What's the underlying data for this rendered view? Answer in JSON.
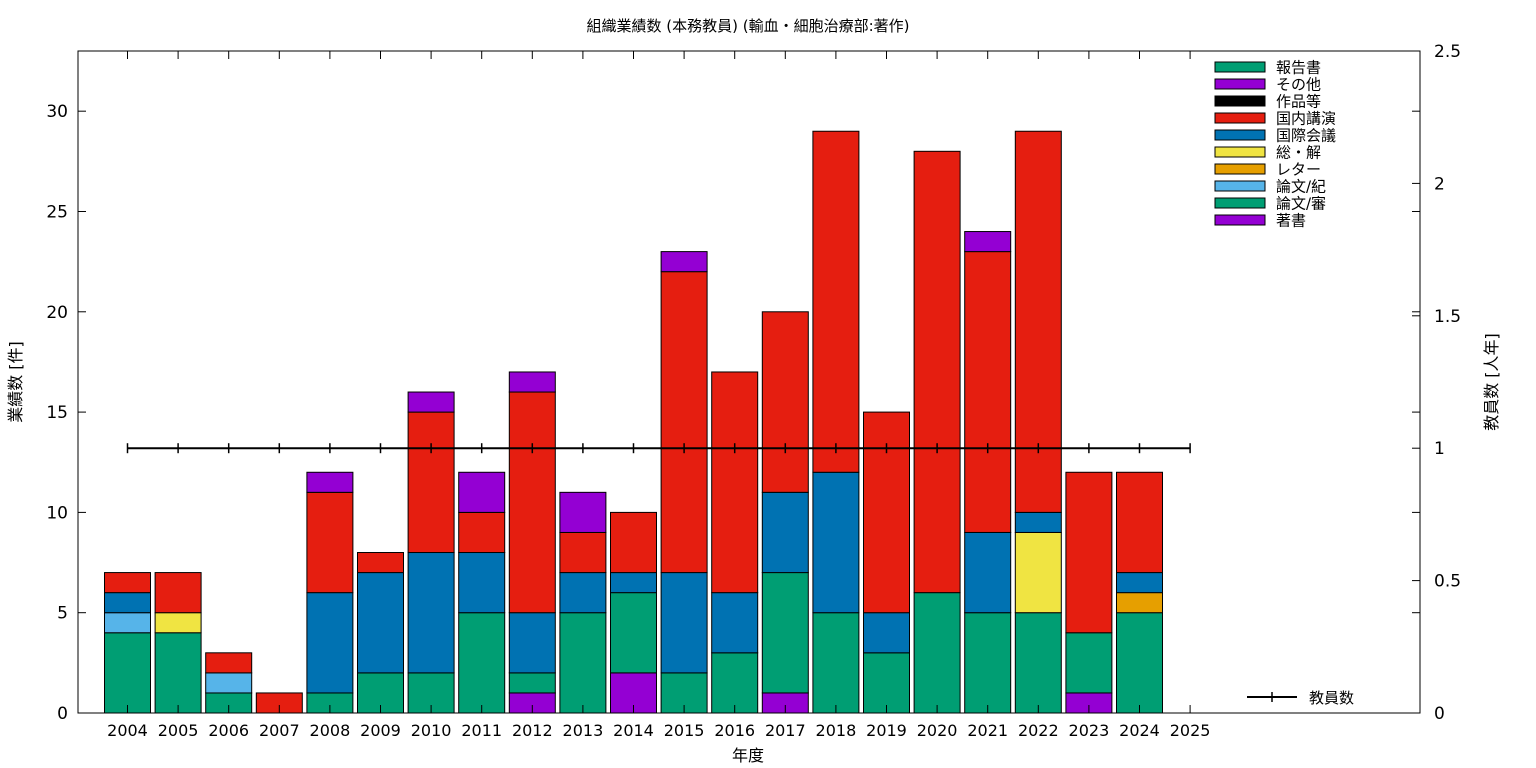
{
  "chart_data": {
    "type": "bar",
    "stacked": true,
    "title": "組織業績数 (本務教員) (輸血・細胞治療部:著作)",
    "xlabel": "年度",
    "ylabel": "業績数 [件]",
    "y2label": "教員数 [人年]",
    "ylim": [
      0,
      33
    ],
    "y2lim": [
      0,
      2.5
    ],
    "yticks": [
      0,
      5,
      10,
      15,
      20,
      25,
      30
    ],
    "y2ticks": [
      "0",
      "0.5",
      "1",
      "1.5",
      "2",
      "2.5"
    ],
    "y2tick_values": [
      0,
      0.5,
      1,
      1.5,
      2,
      2.5
    ],
    "categories": [
      "2004",
      "2005",
      "2006",
      "2007",
      "2008",
      "2009",
      "2010",
      "2011",
      "2012",
      "2013",
      "2014",
      "2015",
      "2016",
      "2017",
      "2018",
      "2019",
      "2020",
      "2021",
      "2022",
      "2023",
      "2024",
      "2025"
    ],
    "series": [
      {
        "name": "著書",
        "color": "#9400d3",
        "values": [
          0,
          0,
          0,
          0,
          0,
          0,
          0,
          0,
          1,
          0,
          2,
          0,
          0,
          1,
          0,
          0,
          0,
          0,
          0,
          1,
          0,
          0
        ]
      },
      {
        "name": "論文/審",
        "color": "#009e73",
        "values": [
          4,
          4,
          1,
          0,
          1,
          2,
          2,
          5,
          1,
          5,
          4,
          2,
          3,
          6,
          5,
          3,
          6,
          5,
          5,
          3,
          5,
          0
        ]
      },
      {
        "name": "論文/紀",
        "color": "#56b4e9",
        "values": [
          1,
          0,
          1,
          0,
          0,
          0,
          0,
          0,
          0,
          0,
          0,
          0,
          0,
          0,
          0,
          0,
          0,
          0,
          0,
          0,
          0,
          0
        ]
      },
      {
        "name": "レター",
        "color": "#e69f00",
        "values": [
          0,
          0,
          0,
          0,
          0,
          0,
          0,
          0,
          0,
          0,
          0,
          0,
          0,
          0,
          0,
          0,
          0,
          0,
          0,
          0,
          1,
          0
        ]
      },
      {
        "name": "総・解",
        "color": "#f0e442",
        "values": [
          0,
          1,
          0,
          0,
          0,
          0,
          0,
          0,
          0,
          0,
          0,
          0,
          0,
          0,
          0,
          0,
          0,
          0,
          4,
          0,
          0,
          0
        ]
      },
      {
        "name": "国際会議",
        "color": "#0072b2",
        "values": [
          1,
          0,
          0,
          0,
          5,
          5,
          6,
          3,
          3,
          2,
          1,
          5,
          3,
          4,
          7,
          2,
          0,
          4,
          1,
          0,
          1,
          0
        ]
      },
      {
        "name": "国内講演",
        "color": "#e51e10",
        "values": [
          1,
          2,
          1,
          1,
          5,
          1,
          7,
          2,
          11,
          2,
          3,
          15,
          11,
          9,
          17,
          10,
          22,
          14,
          19,
          8,
          5,
          0
        ]
      },
      {
        "name": "作品等",
        "color": "#000000",
        "values": [
          0,
          0,
          0,
          0,
          0,
          0,
          0,
          0,
          0,
          0,
          0,
          0,
          0,
          0,
          0,
          0,
          0,
          0,
          0,
          0,
          0,
          0
        ]
      },
      {
        "name": "その他",
        "color": "#9400d3",
        "values": [
          0,
          0,
          0,
          0,
          1,
          0,
          1,
          2,
          1,
          2,
          0,
          1,
          0,
          0,
          0,
          0,
          0,
          1,
          0,
          0,
          0,
          0
        ]
      },
      {
        "name": "報告書",
        "color": "#009e73",
        "values": [
          0,
          0,
          0,
          0,
          0,
          0,
          0,
          0,
          0,
          0,
          0,
          0,
          0,
          0,
          0,
          0,
          0,
          0,
          0,
          0,
          0,
          0
        ]
      }
    ],
    "legend_order": [
      "報告書",
      "その他",
      "作品等",
      "国内講演",
      "国際会議",
      "総・解",
      "レター",
      "論文/紀",
      "論文/審",
      "著書"
    ],
    "line_series": {
      "name": "教員数",
      "axis": "y2",
      "color": "#000000",
      "values": [
        1,
        1,
        1,
        1,
        1,
        1,
        1,
        1,
        1,
        1,
        1,
        1,
        1,
        1,
        1,
        1,
        1,
        1,
        1,
        1,
        1,
        1
      ]
    },
    "legend_position": "top-right",
    "grid": false
  }
}
